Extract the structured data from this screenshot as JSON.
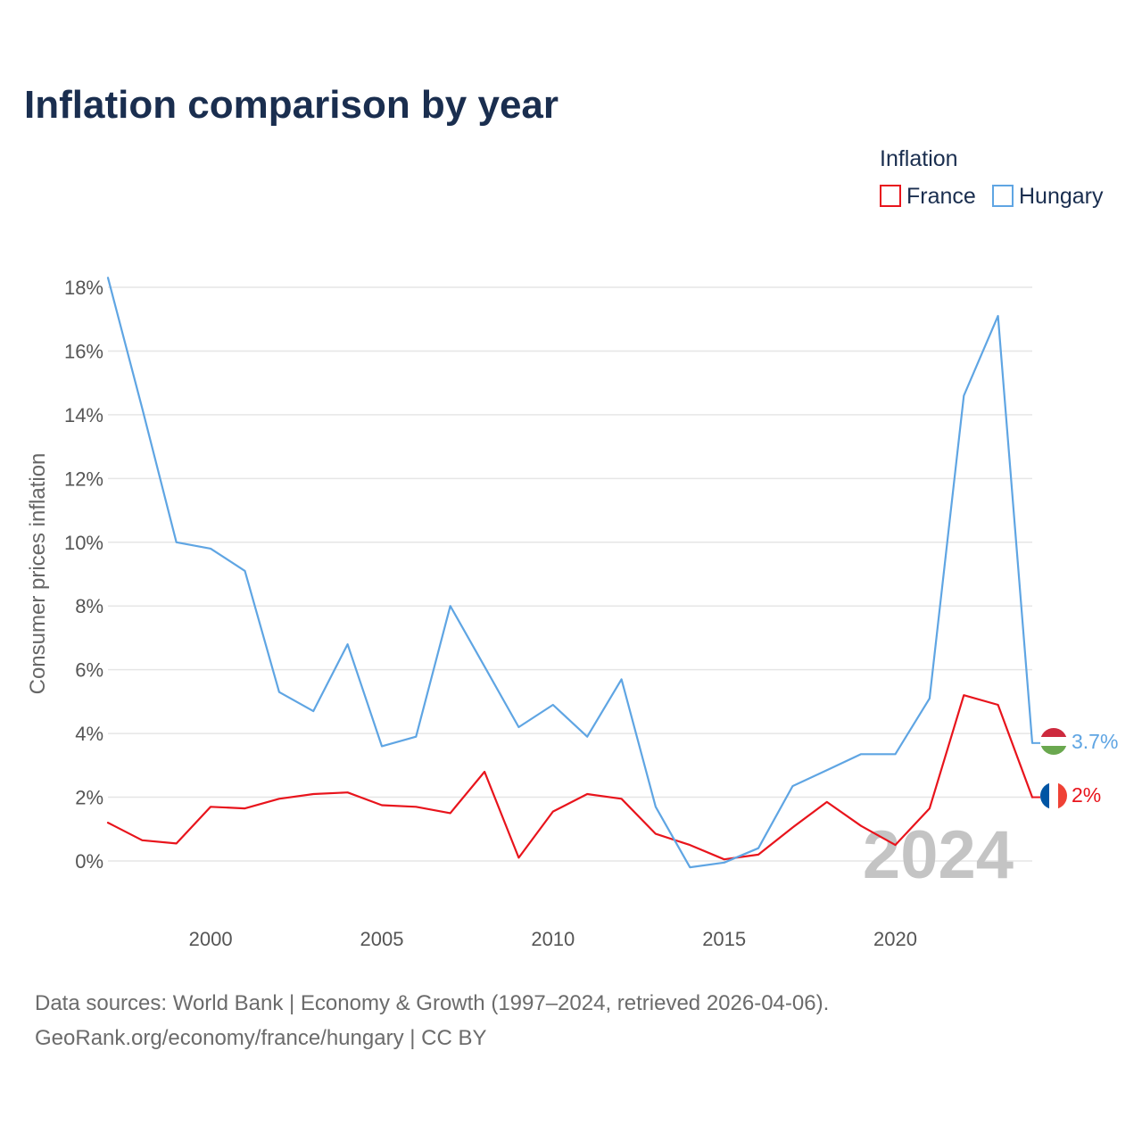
{
  "title": "Inflation comparison by year",
  "legend": {
    "title": "Inflation",
    "items": [
      {
        "label": "France",
        "color": "#e8141c"
      },
      {
        "label": "Hungary",
        "color": "#5fa5e3"
      }
    ]
  },
  "current_year": "2024",
  "footer": {
    "line1": "Data sources: World Bank | Economy & Growth (1997–2024, retrieved 2026-04-06).",
    "line2": "GeoRank.org/economy/france/hungary | CC BY"
  },
  "chart_data": {
    "type": "line",
    "title": "Inflation comparison by year",
    "xlabel": "",
    "ylabel": "Consumer prices inflation",
    "xlim": [
      1997,
      2024
    ],
    "ylim": [
      -1.2,
      18.3
    ],
    "x_ticks": [
      2000,
      2005,
      2010,
      2015,
      2020
    ],
    "x_tick_labels": [
      "2000",
      "2005",
      "2010",
      "2015",
      "2020"
    ],
    "y_ticks": [
      0,
      2,
      4,
      6,
      8,
      10,
      12,
      14,
      16,
      18
    ],
    "y_tick_labels": [
      "0%",
      "2%",
      "4%",
      "6%",
      "8%",
      "10%",
      "12%",
      "14%",
      "16%",
      "18%"
    ],
    "grid": true,
    "x": [
      1997,
      1998,
      1999,
      2000,
      2001,
      2002,
      2003,
      2004,
      2005,
      2006,
      2007,
      2008,
      2009,
      2010,
      2011,
      2012,
      2013,
      2014,
      2015,
      2016,
      2017,
      2018,
      2019,
      2020,
      2021,
      2022,
      2023,
      2024
    ],
    "series": [
      {
        "name": "France",
        "color": "#e8141c",
        "end_label": "2%",
        "values": [
          1.2,
          0.65,
          0.55,
          1.7,
          1.65,
          1.95,
          2.1,
          2.15,
          1.75,
          1.7,
          1.5,
          2.8,
          0.1,
          1.55,
          2.1,
          1.95,
          0.85,
          0.5,
          0.05,
          0.2,
          1.05,
          1.85,
          1.1,
          0.5,
          1.65,
          5.2,
          4.9,
          2.0
        ]
      },
      {
        "name": "Hungary",
        "color": "#5fa5e3",
        "end_label": "3.7%",
        "values": [
          18.3,
          14.2,
          10.0,
          9.8,
          9.1,
          5.3,
          4.7,
          6.8,
          3.6,
          3.9,
          8.0,
          6.1,
          4.2,
          4.9,
          3.9,
          5.7,
          1.7,
          -0.2,
          -0.05,
          0.4,
          2.35,
          2.85,
          3.35,
          3.35,
          5.1,
          14.6,
          17.1,
          3.7
        ]
      }
    ]
  }
}
